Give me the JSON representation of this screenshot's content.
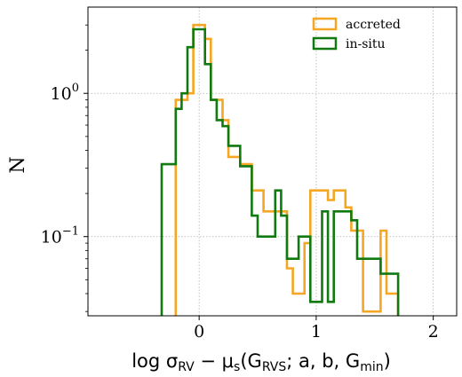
{
  "chart_data": {
    "type": "histogram-step",
    "xlabel": "log σ_RV − μ_s(G_RVS; a, b, G_min)",
    "xlabel_parts": {
      "pre": "log σ",
      "sub1": "RV",
      "mid": " − μ",
      "sub2": "s",
      "open": "(G",
      "sub3": "RVS",
      "rest": "; a, b, G",
      "sub4": "min",
      "close": ")"
    },
    "ylabel": "N",
    "xlim": [
      -0.95,
      2.2
    ],
    "ylim": [
      0.028,
      4.0
    ],
    "yscale": "log",
    "grid": true,
    "legend_position": "top-right",
    "x_ticks": [
      {
        "value": 0,
        "label": "0"
      },
      {
        "value": 1,
        "label": "1"
      },
      {
        "value": 2,
        "label": "2"
      }
    ],
    "y_ticks": [
      {
        "value": 1,
        "label_base": "10",
        "label_exp": "0"
      },
      {
        "value": 0.1,
        "label_base": "10",
        "label_exp": "−1"
      }
    ],
    "series": [
      {
        "name": "accreted",
        "color": "#f5a623",
        "edges": [
          -0.2,
          -0.1,
          -0.05,
          0.05,
          0.1,
          0.2,
          0.25,
          0.35,
          0.45,
          0.55,
          0.75,
          0.8,
          0.9,
          0.95,
          1.1,
          1.15,
          1.25,
          1.3,
          1.4,
          1.55,
          1.6,
          1.7
        ],
        "values": [
          0.9,
          1.0,
          3.0,
          2.4,
          0.9,
          0.65,
          0.36,
          0.32,
          0.21,
          0.15,
          0.06,
          0.04,
          0.09,
          0.21,
          0.18,
          0.21,
          0.16,
          0.11,
          0.03,
          0.11,
          0.04
        ]
      },
      {
        "name": "in-situ",
        "color": "#107a10",
        "edges": [
          -0.32,
          -0.2,
          -0.15,
          -0.1,
          -0.05,
          0.05,
          0.1,
          0.15,
          0.2,
          0.25,
          0.35,
          0.45,
          0.5,
          0.65,
          0.7,
          0.75,
          0.85,
          0.95,
          1.05,
          1.1,
          1.15,
          1.3,
          1.35,
          1.55,
          1.7
        ],
        "values": [
          0.32,
          0.78,
          1.0,
          2.1,
          2.8,
          1.6,
          0.9,
          0.65,
          0.59,
          0.43,
          0.31,
          0.14,
          0.1,
          0.21,
          0.14,
          0.07,
          0.1,
          0.035,
          0.15,
          0.035,
          0.15,
          0.13,
          0.07,
          0.055
        ]
      }
    ]
  }
}
